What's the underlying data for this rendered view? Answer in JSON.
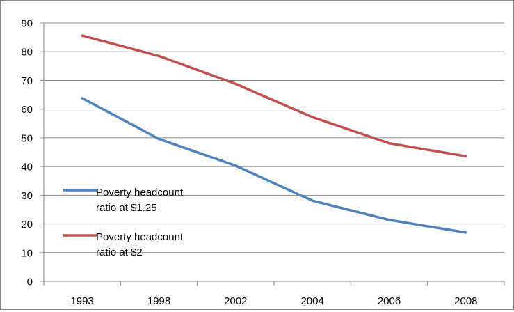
{
  "chart_data": {
    "type": "line",
    "title": "",
    "xlabel": "",
    "ylabel": "",
    "categories": [
      "1993",
      "1998",
      "2002",
      "2004",
      "2006",
      "2008"
    ],
    "ylim": [
      0,
      90
    ],
    "yticks": [
      0,
      10,
      20,
      30,
      40,
      50,
      60,
      70,
      80,
      90
    ],
    "grid": "horizontal",
    "legend_position": "left-inside",
    "series": [
      {
        "name": "Poverty headcount ratio at $1.25",
        "legend_lines": [
          "Poverty headcount",
          "ratio at $1.25"
        ],
        "color": "#4f81bd",
        "values": [
          63.8,
          49.6,
          40.3,
          28.1,
          21.4,
          17.0
        ]
      },
      {
        "name": "Poverty headcount ratio at $2",
        "legend_lines": [
          "Poverty headcount",
          "ratio at $2"
        ],
        "color": "#c0504d",
        "values": [
          85.6,
          78.5,
          68.8,
          57.2,
          48.1,
          43.6
        ]
      }
    ]
  }
}
